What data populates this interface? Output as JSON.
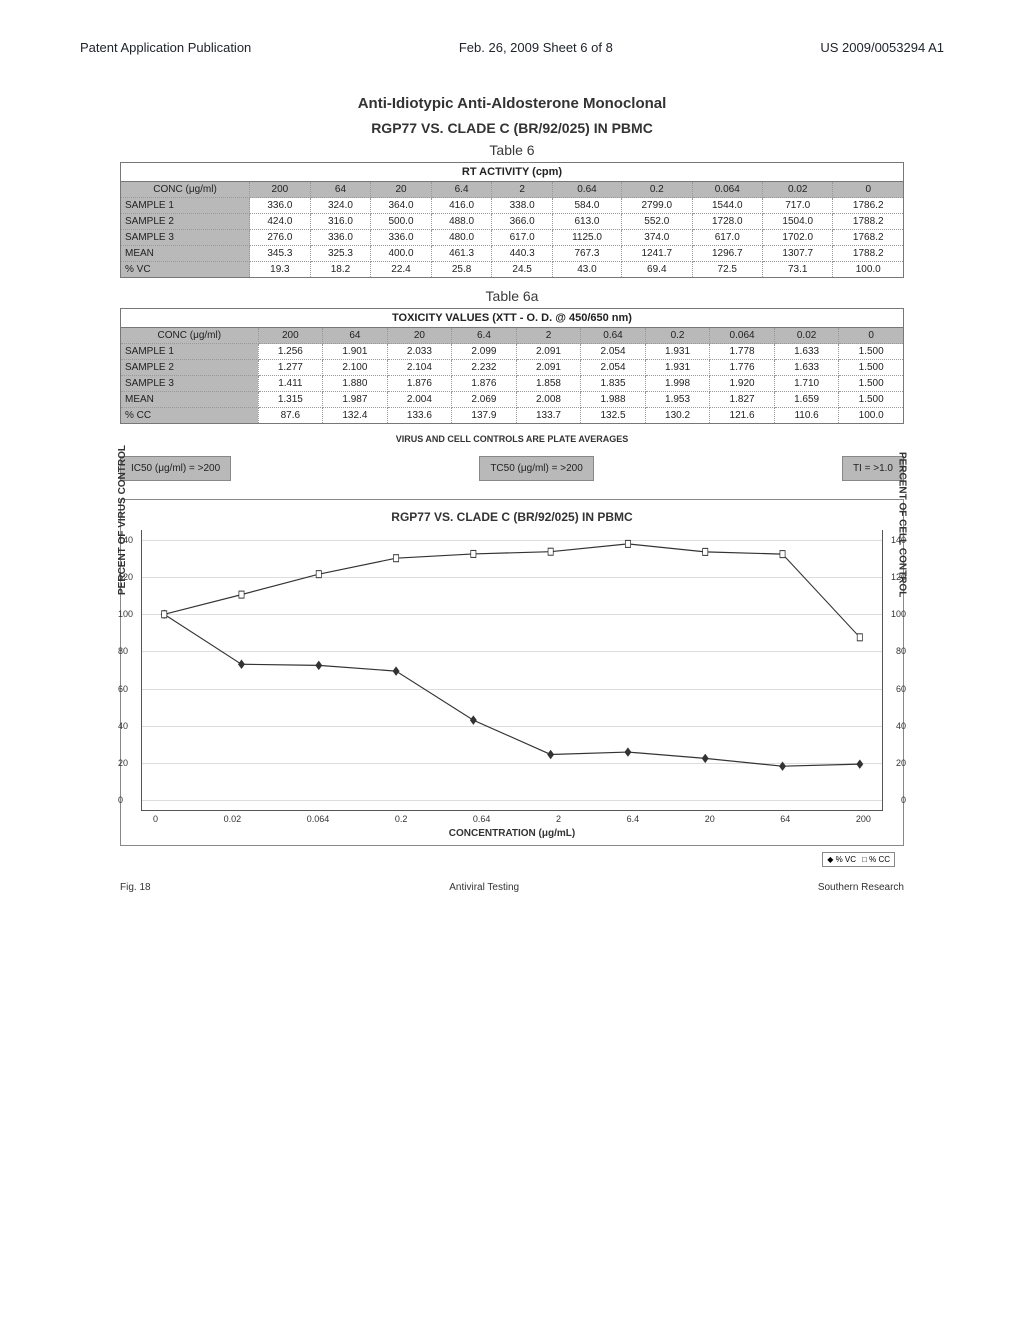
{
  "header": {
    "left": "Patent Application Publication",
    "center": "Feb. 26, 2009  Sheet 6 of 8",
    "right": "US 2009/0053294 A1"
  },
  "titles": {
    "main": "Anti-Idiotypic Anti-Aldosterone Monoclonal",
    "sub": "RGP77 VS. CLADE C (BR/92/025) IN PBMC",
    "hand1": "Table 6",
    "hand2": "Table 6a"
  },
  "table_rt": {
    "caption": "RT ACTIVITY (cpm)",
    "style": {
      "header_bg": "#b9b9b9",
      "rowlabel_bg": "#b9b9b9",
      "border_color": "#777",
      "cell_border": "#999",
      "fontsize": 10
    },
    "columns": [
      "CONC (μg/ml)",
      "200",
      "64",
      "20",
      "6.4",
      "2",
      "0.64",
      "0.2",
      "0.064",
      "0.02",
      "0"
    ],
    "rows": [
      [
        "SAMPLE 1",
        "336.0",
        "324.0",
        "364.0",
        "416.0",
        "338.0",
        "584.0",
        "2799.0",
        "1544.0",
        "717.0",
        "1786.2"
      ],
      [
        "SAMPLE 2",
        "424.0",
        "316.0",
        "500.0",
        "488.0",
        "366.0",
        "613.0",
        "552.0",
        "1728.0",
        "1504.0",
        "1788.2"
      ],
      [
        "SAMPLE 3",
        "276.0",
        "336.0",
        "336.0",
        "480.0",
        "617.0",
        "1125.0",
        "374.0",
        "617.0",
        "1702.0",
        "1768.2"
      ],
      [
        "MEAN",
        "345.3",
        "325.3",
        "400.0",
        "461.3",
        "440.3",
        "767.3",
        "1241.7",
        "1296.7",
        "1307.7",
        "1788.2"
      ],
      [
        "% VC",
        "19.3",
        "18.2",
        "22.4",
        "25.8",
        "24.5",
        "43.0",
        "69.4",
        "72.5",
        "73.1",
        "100.0"
      ]
    ]
  },
  "table_tox": {
    "caption": "TOXICITY VALUES (XTT - O. D. @ 450/650 nm)",
    "style": {
      "header_bg": "#b9b9b9",
      "rowlabel_bg": "#b9b9b9",
      "border_color": "#777",
      "cell_border": "#999",
      "fontsize": 10
    },
    "columns": [
      "CONC (μg/ml)",
      "200",
      "64",
      "20",
      "6.4",
      "2",
      "0.64",
      "0.2",
      "0.064",
      "0.02",
      "0"
    ],
    "rows": [
      [
        "SAMPLE 1",
        "1.256",
        "1.901",
        "2.033",
        "2.099",
        "2.091",
        "2.054",
        "1.931",
        "1.778",
        "1.633",
        "1.500"
      ],
      [
        "SAMPLE 2",
        "1.277",
        "2.100",
        "2.104",
        "2.232",
        "2.091",
        "2.054",
        "1.931",
        "1.776",
        "1.633",
        "1.500"
      ],
      [
        "SAMPLE 3",
        "1.411",
        "1.880",
        "1.876",
        "1.876",
        "1.858",
        "1.835",
        "1.998",
        "1.920",
        "1.710",
        "1.500"
      ],
      [
        "MEAN",
        "1.315",
        "1.987",
        "2.004",
        "2.069",
        "2.008",
        "1.988",
        "1.953",
        "1.827",
        "1.659",
        "1.500"
      ],
      [
        "% CC",
        "87.6",
        "132.4",
        "133.6",
        "137.9",
        "133.7",
        "132.5",
        "130.2",
        "121.6",
        "110.6",
        "100.0"
      ]
    ]
  },
  "plate_note": "VIRUS AND CELL CONTROLS ARE PLATE AVERAGES",
  "badges": {
    "left": "IC50 (μg/ml) = >200",
    "center": "TC50 (μg/ml) = >200",
    "right": "TI = >1.0"
  },
  "chart": {
    "type": "line",
    "title": "RGP77 VS. CLADE C (BR/92/025) IN PBMC",
    "xlabel": "CONCENTRATION (μg/mL)",
    "ylabel_left": "PERCENT OF VIRUS CONTROL",
    "ylabel_right": "PERCENT OF CELL CONTROL",
    "x_categories": [
      "0",
      "0.02",
      "0.064",
      "0.2",
      "0.64",
      "2",
      "6.4",
      "20",
      "64",
      "200"
    ],
    "ylim": [
      0,
      140
    ],
    "ytick_step": 20,
    "grid_color": "#dddddd",
    "background_color": "#ffffff",
    "series": [
      {
        "name": "% VC",
        "color": "#333333",
        "marker": "diamond",
        "marker_fill": "#333333",
        "line_width": 1.2,
        "values": [
          100.0,
          73.1,
          72.5,
          69.4,
          43.0,
          24.5,
          25.8,
          22.4,
          18.2,
          19.3
        ]
      },
      {
        "name": "% CC",
        "color": "#333333",
        "marker": "square",
        "marker_fill": "#ffffff",
        "line_width": 1.2,
        "values": [
          100.0,
          110.6,
          121.6,
          130.2,
          132.5,
          133.7,
          137.9,
          133.6,
          132.4,
          87.6
        ]
      }
    ],
    "legend": {
      "entries": [
        "% VC",
        "% CC"
      ],
      "position": "bottom-right"
    },
    "axis_fontsize": 9,
    "label_fontsize": 10,
    "title_fontsize": 12
  },
  "footer": {
    "left": "Fig. 18",
    "center": "Antiviral Testing",
    "right": "Southern Research"
  }
}
